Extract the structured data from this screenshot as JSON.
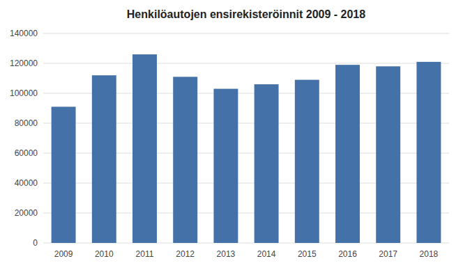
{
  "chart_data": {
    "type": "bar",
    "title": "Henkilöautojen ensirekisteröinnit 2009 - 2018",
    "categories": [
      "2009",
      "2010",
      "2011",
      "2012",
      "2013",
      "2014",
      "2015",
      "2016",
      "2017",
      "2018"
    ],
    "values": [
      91000,
      112000,
      126000,
      111000,
      103000,
      106000,
      109000,
      119000,
      118000,
      121000
    ],
    "color": "#4472a8",
    "ylim": [
      0,
      140000
    ],
    "yticks": [
      0,
      20000,
      40000,
      60000,
      80000,
      100000,
      120000,
      140000
    ],
    "grid": true
  }
}
